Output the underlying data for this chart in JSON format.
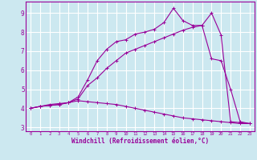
{
  "xlabel": "Windchill (Refroidissement éolien,°C)",
  "bg_color": "#cce8f0",
  "grid_color": "#ffffff",
  "line_color": "#990099",
  "xlim": [
    -0.5,
    23.5
  ],
  "ylim": [
    2.8,
    9.6
  ],
  "xticks": [
    0,
    1,
    2,
    3,
    4,
    5,
    6,
    7,
    8,
    9,
    10,
    11,
    12,
    13,
    14,
    15,
    16,
    17,
    18,
    19,
    20,
    21,
    22,
    23
  ],
  "yticks": [
    3,
    4,
    5,
    6,
    7,
    8,
    9
  ],
  "line1_x": [
    0,
    1,
    2,
    3,
    4,
    5,
    6,
    7,
    8,
    9,
    10,
    11,
    12,
    13,
    14,
    15,
    16,
    17,
    18,
    19,
    20,
    21,
    22,
    23
  ],
  "line1_y": [
    4.0,
    4.1,
    4.15,
    4.2,
    4.3,
    4.4,
    4.35,
    4.3,
    4.25,
    4.2,
    4.1,
    4.0,
    3.9,
    3.8,
    3.7,
    3.6,
    3.5,
    3.45,
    3.4,
    3.35,
    3.3,
    3.25,
    3.2,
    3.2
  ],
  "line2_x": [
    0,
    1,
    2,
    3,
    4,
    5,
    6,
    7,
    8,
    9,
    10,
    11,
    12,
    13,
    14,
    15,
    16,
    17,
    18,
    19,
    20,
    21,
    22,
    23
  ],
  "line2_y": [
    4.0,
    4.1,
    4.15,
    4.2,
    4.3,
    4.5,
    5.2,
    5.6,
    6.1,
    6.5,
    6.9,
    7.1,
    7.3,
    7.5,
    7.7,
    7.9,
    8.1,
    8.25,
    8.35,
    6.6,
    6.5,
    5.0,
    3.3,
    3.2
  ],
  "line3_x": [
    0,
    1,
    2,
    3,
    4,
    5,
    6,
    7,
    8,
    9,
    10,
    11,
    12,
    13,
    14,
    15,
    16,
    17,
    18,
    19,
    20,
    21,
    22,
    23
  ],
  "line3_y": [
    4.0,
    4.1,
    4.2,
    4.25,
    4.3,
    4.6,
    5.5,
    6.5,
    7.1,
    7.5,
    7.6,
    7.9,
    8.0,
    8.15,
    8.5,
    9.25,
    8.6,
    8.35,
    8.35,
    9.0,
    7.85,
    3.3,
    3.25,
    3.2
  ]
}
